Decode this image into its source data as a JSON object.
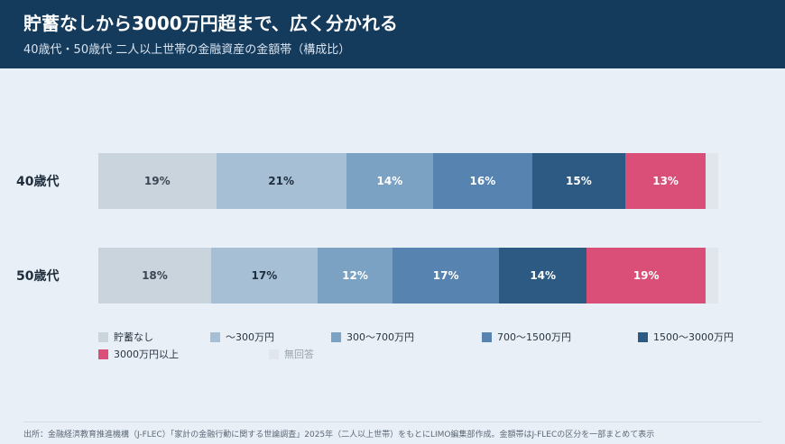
{
  "header": {
    "title": "貯蓄なしから3000万円超まで、広く分かれる",
    "subtitle": "40歳代・50歳代 二人以上世帯の金融資産の金額帯（構成比）"
  },
  "chart_data": {
    "type": "bar",
    "orientation": "horizontal",
    "stacked": "100%",
    "categories": [
      "40歳代",
      "50歳代"
    ],
    "series": [
      {
        "name": "貯蓄なし",
        "color": "#c9d4dd",
        "text_color": "#3a4654",
        "values": [
          19,
          18
        ],
        "labels": [
          "19%",
          "18%"
        ]
      },
      {
        "name": "〜300万円",
        "color": "#a7bfd5",
        "text_color": "#1f2d3d",
        "values": [
          21,
          17
        ],
        "labels": [
          "21%",
          "17%"
        ]
      },
      {
        "name": "300〜700万円",
        "color": "#7ba1c3",
        "text_color": "#ffffff",
        "values": [
          14,
          12
        ],
        "labels": [
          "14%",
          "12%"
        ]
      },
      {
        "name": "700〜1500万円",
        "color": "#5783b0",
        "text_color": "#ffffff",
        "values": [
          16,
          17
        ],
        "labels": [
          "16%",
          "17%"
        ]
      },
      {
        "name": "1500〜3000万円",
        "color": "#2d5a83",
        "text_color": "#ffffff",
        "values": [
          15,
          14
        ],
        "labels": [
          "15%",
          "14%"
        ]
      },
      {
        "name": "3000万円以上",
        "color": "#d94f77",
        "text_color": "#ffffff",
        "values": [
          13,
          19
        ],
        "labels": [
          "13%",
          "19%"
        ]
      },
      {
        "name": "無回答",
        "color": "#e1e6ec",
        "text_color": "#9aa3ad",
        "values": [
          2,
          2
        ],
        "labels": [
          "",
          ""
        ]
      }
    ]
  },
  "source": "出所：金融経済教育推進機構（J-FLEC）「家計の金融行動に関する世論調査」2025年（二人以上世帯）をもとにLIMO編集部作成。金額帯はJ-FLECの区分を一部まとめて表示"
}
